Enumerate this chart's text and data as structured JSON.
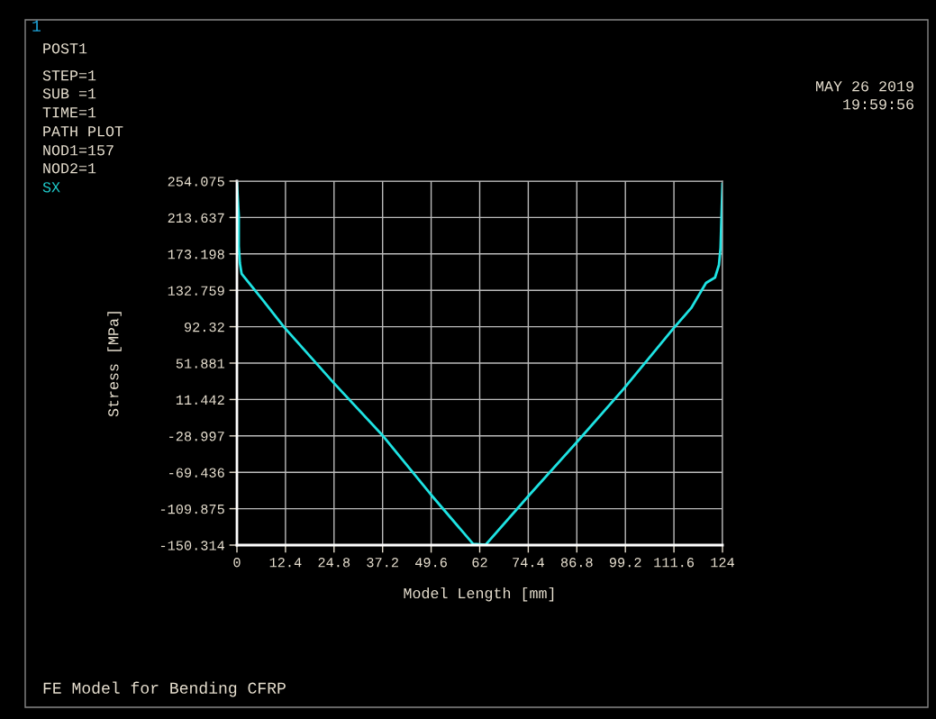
{
  "chart_data": {
    "type": "line",
    "xlabel": "Model Length [mm]",
    "ylabel": "Stress [MPa]",
    "annotations": [
      "1",
      "POST1",
      "STEP=1",
      "SUB =1",
      "TIME=1",
      "PATH PLOT",
      "NOD1=157",
      "NOD2=1",
      "SX",
      "MAY 26 2019",
      "19:59:56",
      "FE Model for Bending CFRP"
    ],
    "xlim": [
      0,
      124
    ],
    "xticks": [
      0,
      12.4,
      24.8,
      37.2,
      49.6,
      62,
      74.4,
      86.8,
      99.2,
      111.6,
      124
    ],
    "ylim": [
      -150.314,
      254.075
    ],
    "yticks": [
      -150.314,
      -109.875,
      -69.436,
      -28.997,
      11.442,
      51.881,
      92.32,
      132.759,
      173.198,
      213.637,
      254.075
    ],
    "grid": true,
    "legend": false,
    "series": [
      {
        "color": "#1ee3e3",
        "x": [
          0,
          0.47,
          0.47,
          0.75,
          1.2,
          6.4,
          12.0,
          24.7,
          37.3,
          49.5,
          60.3,
          63.5,
          74.8,
          87.0,
          98.7,
          111.4,
          116.0,
          119.8,
          122.1,
          123.1,
          123.5,
          124
        ],
        "values": [
          252,
          216,
          182,
          163,
          151,
          123,
          92,
          30,
          -29,
          -94,
          -149,
          -150,
          -94,
          -35,
          23,
          90,
          113,
          141,
          147,
          161,
          180,
          251
        ]
      }
    ]
  }
}
